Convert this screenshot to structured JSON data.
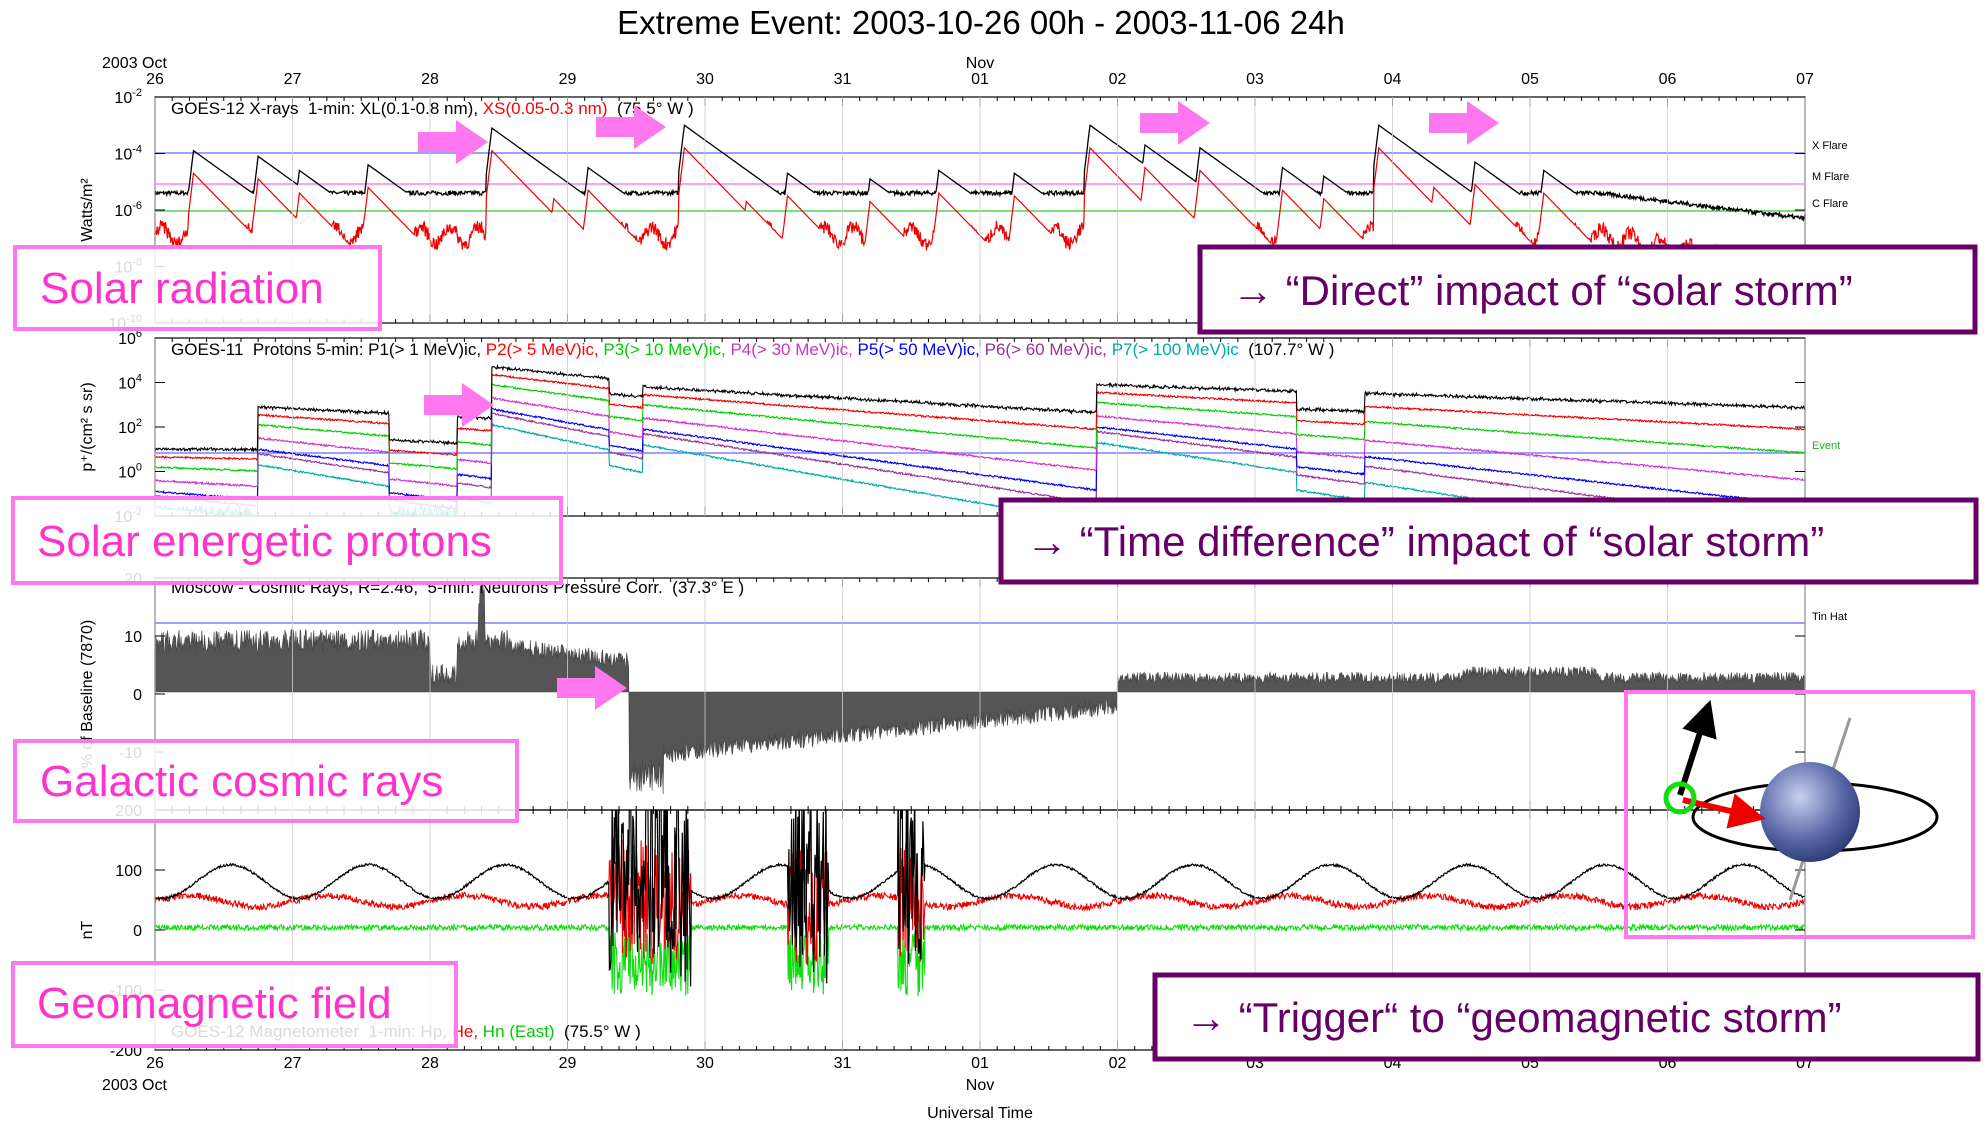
{
  "title": "Extreme Event: 2003-10-26 00h - 2003-11-06 24h",
  "x_axis": {
    "start_label": "2003 Oct",
    "month_label": "Nov",
    "days": [
      "26",
      "27",
      "28",
      "29",
      "30",
      "31",
      "01",
      "02",
      "03",
      "04",
      "05",
      "06",
      "07"
    ],
    "label": "Universal Time"
  },
  "panels": [
    {
      "title": [
        {
          "text": "GOES-12 X-rays  1-min: XL(0.1-0.8 nm), ",
          "color": "#000000"
        },
        {
          "text": "XS(0.05-0.3 nm)",
          "color": "#ff0000"
        },
        {
          "text": "  (75.5° W )",
          "color": "#000000"
        }
      ],
      "ylabel": "Watts/m²",
      "yticks": [
        {
          "base": "10",
          "exp": "-2"
        },
        {
          "base": "10",
          "exp": "-4"
        },
        {
          "base": "10",
          "exp": "-6"
        },
        {
          "base": "10",
          "exp": "-8"
        },
        {
          "base": "10",
          "exp": "-10"
        }
      ],
      "right_labels": [
        "X Flare",
        "M Flare",
        "C Flare"
      ]
    },
    {
      "title": [
        {
          "text": "GOES-11  Protons 5-min: P1(> 1 MeV)ic, ",
          "color": "#000000"
        },
        {
          "text": "P2(> 5 MeV)ic, ",
          "color": "#ff0000"
        },
        {
          "text": "P3(> 10 MeV)ic, ",
          "color": "#00cc00"
        },
        {
          "text": "P4(> 30 MeV)ic, ",
          "color": "#cc33cc"
        },
        {
          "text": "P5(> 50 MeV)ic, ",
          "color": "#0000ff"
        },
        {
          "text": "P6(> 60 MeV)ic, ",
          "color": "#993399"
        },
        {
          "text": "P7(> 100 MeV)ic",
          "color": "#00aaaa"
        },
        {
          "text": "  (107.7° W )",
          "color": "#000000"
        }
      ],
      "ylabel": "p⁺/(cm² s sr)",
      "yticks": [
        {
          "base": "10",
          "exp": "6"
        },
        {
          "base": "10",
          "exp": "4"
        },
        {
          "base": "10",
          "exp": "2"
        },
        {
          "base": "10",
          "exp": "0"
        },
        {
          "base": "10",
          "exp": "-2"
        }
      ],
      "right_labels": [
        "Event"
      ]
    },
    {
      "title": [
        {
          "text": "Moscow - Cosmic Rays, R=2.46,  5-min: Neutrons Pressure Corr.  (37.3° E )",
          "color": "#000000"
        }
      ],
      "ylabel": "% of Baseline (7870)",
      "yticks": [
        "20",
        "10",
        "0",
        "-10"
      ],
      "right_labels": [
        "Tin Hat"
      ]
    },
    {
      "title": [
        {
          "text": "GOES-12 Magnetometer  1-min: Hp, ",
          "color": "#000000"
        },
        {
          "text": "He, ",
          "color": "#ff0000"
        },
        {
          "text": "Hn (East)",
          "color": "#00cc00"
        },
        {
          "text": "  (75.5° W )",
          "color": "#000000"
        }
      ],
      "ylabel": "nT",
      "yticks": [
        "200",
        "100",
        "0",
        "-100",
        "-200"
      ],
      "right_labels": []
    }
  ],
  "annotations": {
    "left": [
      "Solar radiation",
      "Solar energetic protons",
      "Galactic cosmic rays",
      "Geomagnetic field"
    ],
    "right": [
      "→ “Direct” impact of “solar storm”",
      "→ “Time difference” impact of “solar storm”",
      "→ “Trigger“ to “geomagnetic storm”"
    ]
  }
}
